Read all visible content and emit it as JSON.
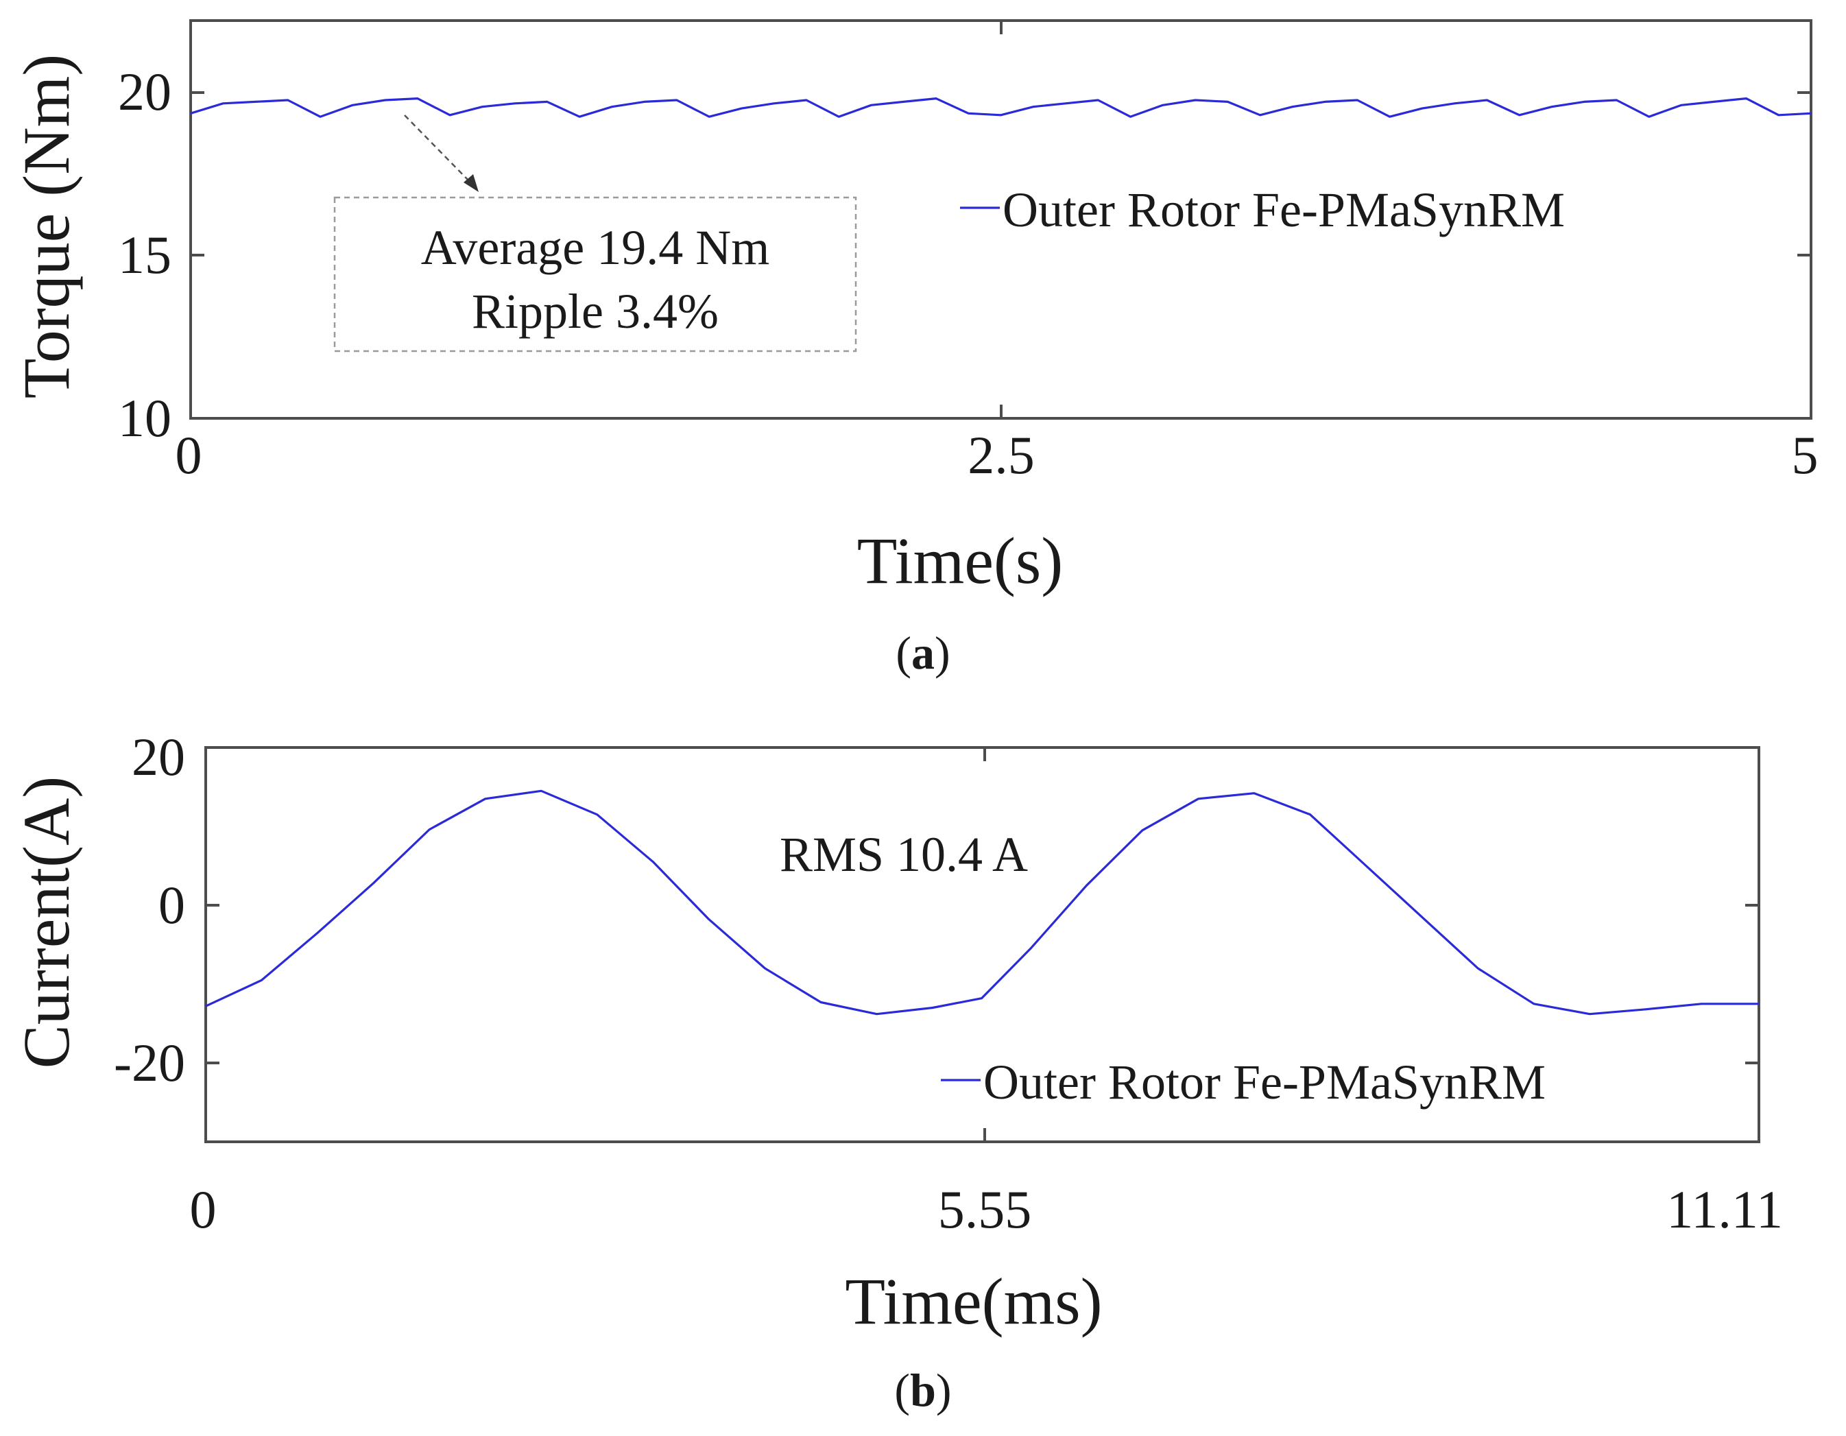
{
  "chart_data": [
    {
      "type": "line",
      "panel_label": "a",
      "xlabel": "Time(s)",
      "ylabel": "Torque (Nm)",
      "xlim": [
        0,
        5
      ],
      "ylim": [
        10,
        22
      ],
      "xticks": [
        "0",
        "2.5",
        "5"
      ],
      "yticks": [
        "10",
        "15",
        "20"
      ],
      "grid": false,
      "legend_position": "top-right",
      "series": [
        {
          "name": "Outer Rotor Fe-PMaSynRM",
          "color": "#2a2ad8",
          "x": [
            0,
            0.1,
            0.2,
            0.3,
            0.4,
            0.5,
            0.6,
            0.7,
            0.8,
            0.9,
            1.0,
            1.1,
            1.2,
            1.3,
            1.4,
            1.5,
            1.6,
            1.7,
            1.8,
            1.9,
            2.0,
            2.1,
            2.2,
            2.3,
            2.4,
            2.5,
            2.6,
            2.7,
            2.8,
            2.9,
            3.0,
            3.1,
            3.2,
            3.3,
            3.4,
            3.5,
            3.6,
            3.7,
            3.8,
            3.9,
            4.0,
            4.1,
            4.2,
            4.3,
            4.4,
            4.5,
            4.6,
            4.7,
            4.8,
            4.9,
            5.0
          ],
          "y": [
            19.2,
            19.5,
            19.55,
            19.6,
            19.1,
            19.45,
            19.6,
            19.65,
            19.15,
            19.4,
            19.5,
            19.55,
            19.1,
            19.4,
            19.55,
            19.6,
            19.1,
            19.35,
            19.5,
            19.6,
            19.1,
            19.45,
            19.55,
            19.65,
            19.2,
            19.15,
            19.4,
            19.5,
            19.6,
            19.1,
            19.45,
            19.6,
            19.55,
            19.15,
            19.4,
            19.55,
            19.6,
            19.1,
            19.35,
            19.5,
            19.6,
            19.15,
            19.4,
            19.55,
            19.6,
            19.1,
            19.45,
            19.55,
            19.65,
            19.15,
            19.2
          ]
        }
      ],
      "annotations": [
        "Average 19.4 Nm",
        "Ripple 3.4%"
      ]
    },
    {
      "type": "line",
      "panel_label": "b",
      "xlabel": "Time(ms)",
      "ylabel": "Current(A)",
      "xlim": [
        0,
        11.11
      ],
      "ylim": [
        -30,
        20
      ],
      "xticks": [
        "0",
        "5.55",
        "11.11"
      ],
      "yticks": [
        "-20",
        "0",
        "20"
      ],
      "grid": false,
      "legend_position": "bottom-right",
      "series": [
        {
          "name": "Outer Rotor Fe-PMaSynRM",
          "color": "#2a2ad8",
          "x": [
            0,
            0.4,
            0.8,
            1.2,
            1.6,
            2.0,
            2.4,
            2.8,
            3.2,
            3.6,
            4.0,
            4.4,
            4.8,
            5.2,
            5.55,
            5.9,
            6.3,
            6.7,
            7.1,
            7.5,
            7.9,
            8.3,
            8.7,
            9.1,
            9.5,
            9.9,
            10.3,
            10.7,
            11.11
          ],
          "y": [
            -12.8,
            -9.5,
            -3.5,
            2.8,
            9.6,
            13.5,
            14.5,
            11.5,
            5.5,
            -1.8,
            -8.0,
            -12.3,
            -13.8,
            -13.0,
            -11.8,
            -5.5,
            2.5,
            9.5,
            13.5,
            14.2,
            11.5,
            5.0,
            -1.5,
            -8.0,
            -12.5,
            -13.8,
            -13.2,
            -12.5,
            -12.5
          ]
        }
      ],
      "annotations": [
        "RMS 10.4 A"
      ]
    }
  ]
}
